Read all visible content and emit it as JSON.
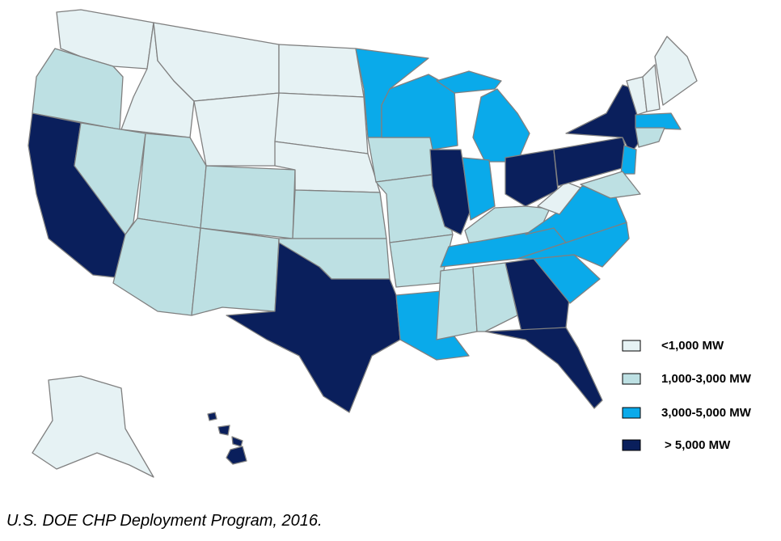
{
  "legend": [
    {
      "label": "<1,000 MW",
      "color": "#e6f2f4"
    },
    {
      "label": "1,000-3,000 MW",
      "color": "#bde0e3"
    },
    {
      "label": "3,000-5,000 MW",
      "color": "#0aaaea"
    },
    {
      "label": "> 5,000 MW",
      "color": "#0a1f5c"
    }
  ],
  "caption": "U.S. DOE CHP Deployment Program, 2016."
}
